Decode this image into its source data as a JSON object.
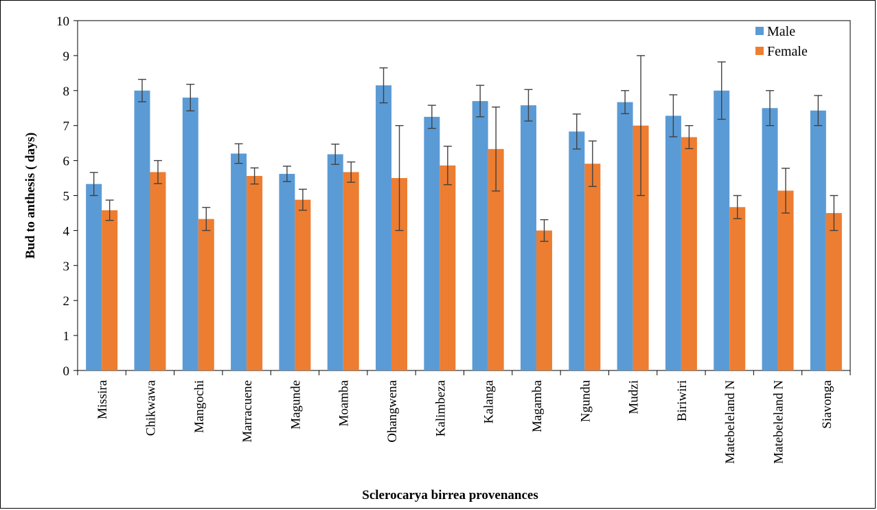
{
  "chart_data": {
    "type": "bar",
    "title": "",
    "xlabel": "Sclerocarya birrea provenances",
    "ylabel": "Bud to anthesis ( days)",
    "ylim": [
      0,
      10
    ],
    "yticks": [
      0,
      1,
      2,
      3,
      4,
      5,
      6,
      7,
      8,
      9,
      10
    ],
    "grid": false,
    "legend_position": "top-right",
    "categories": [
      "Missira",
      "Chikwawa",
      "Mangochi",
      "Marracuene",
      "Magunde",
      "Moamba",
      "Ohangwena",
      "Kalimbeza",
      "Kalanga",
      "Magamba",
      "Ngundu",
      "Mudzi",
      "Biriwiri",
      "Matebeleland N",
      "Matebeleland N",
      "Siavonga"
    ],
    "series": [
      {
        "name": "Male",
        "color": "#5B9BD5",
        "values": [
          5.33,
          8.0,
          7.8,
          6.2,
          5.62,
          6.18,
          8.15,
          7.25,
          7.7,
          7.58,
          6.83,
          7.67,
          7.28,
          8.0,
          7.5,
          7.43
        ],
        "errors": [
          0.33,
          0.32,
          0.38,
          0.28,
          0.22,
          0.29,
          0.5,
          0.33,
          0.45,
          0.45,
          0.5,
          0.33,
          0.6,
          0.82,
          0.5,
          0.43
        ]
      },
      {
        "name": "Female",
        "color": "#ED7D31",
        "values": [
          4.58,
          5.67,
          4.33,
          5.56,
          4.88,
          5.67,
          5.5,
          5.86,
          6.33,
          4.0,
          5.91,
          7.0,
          6.67,
          4.67,
          5.14,
          4.5
        ],
        "errors": [
          0.29,
          0.33,
          0.33,
          0.23,
          0.3,
          0.29,
          1.5,
          0.55,
          1.2,
          0.31,
          0.65,
          2.0,
          0.33,
          0.33,
          0.64,
          0.5
        ]
      }
    ]
  }
}
